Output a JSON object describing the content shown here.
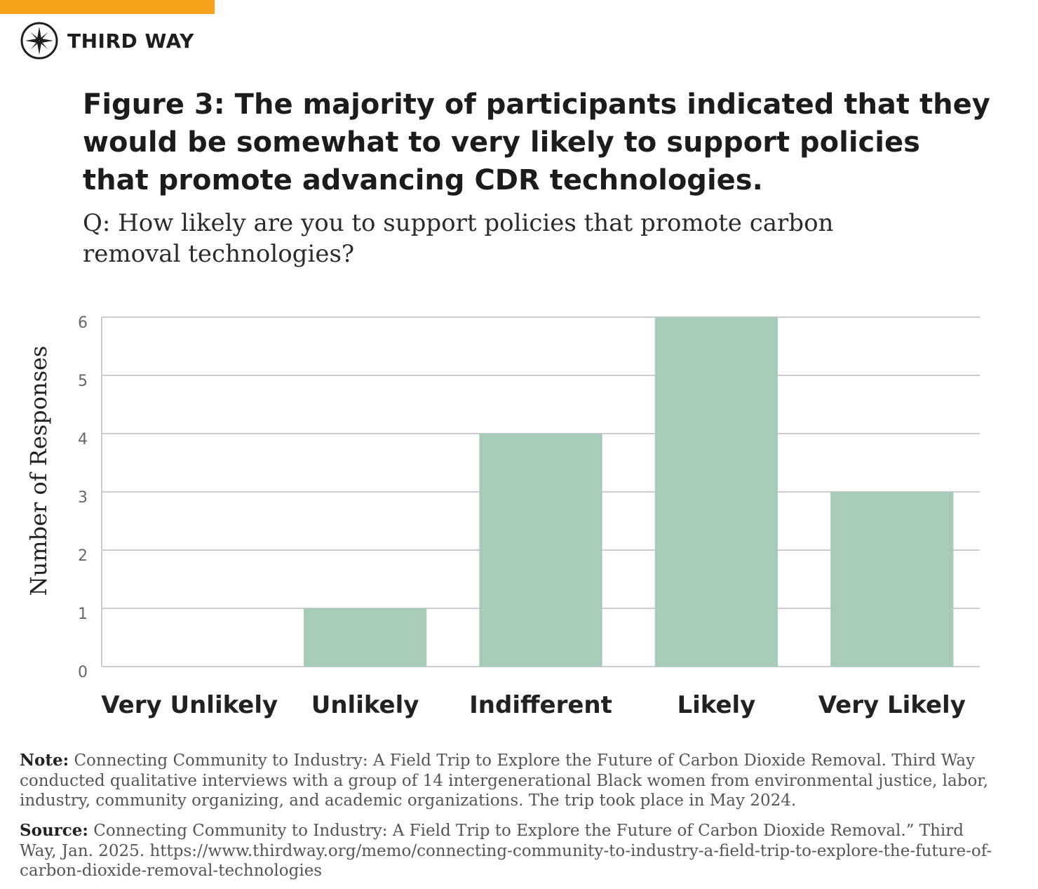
{
  "brand": {
    "name": "THIRD WAY",
    "logo_icon": "compass-star-icon",
    "accent_color": "#f7a21b"
  },
  "title": "Figure 3: The majority of participants indicated that they would be somewhat to very likely to support policies that promote advancing CDR technologies.",
  "subtitle": "Q: How likely are you to support policies that promote carbon removal technologies?",
  "chart_data": {
    "type": "bar",
    "categories": [
      "Very Unlikely",
      "Unlikely",
      "Indifferent",
      "Likely",
      "Very Likely"
    ],
    "values": [
      0,
      1,
      4,
      6,
      3
    ],
    "ylabel": "Number of Responses",
    "xlabel": "",
    "ylim": [
      0,
      6
    ],
    "yticks": [
      0,
      1,
      2,
      3,
      4,
      5,
      6
    ],
    "grid": true,
    "bar_color": "#a6cbb7"
  },
  "note": {
    "label": "Note:",
    "text": "Connecting Community to Industry: A Field Trip to Explore the Future of Carbon Dioxide Removal. Third Way conducted qualitative interviews with a group of 14 intergenerational Black women from environmental justice, labor, industry, community organizing, and academic organizations. The trip took place in May 2024."
  },
  "source": {
    "label": "Source:",
    "text": "Connecting Community to Industry: A Field Trip to Explore the Future of Carbon Dioxide Removal.” Third Way, Jan. 2025. https://www.thirdway.org/memo/connecting-community-to-industry-a-field-trip-to-explore-the-future-of-carbon-dioxide-removal-technologies"
  }
}
